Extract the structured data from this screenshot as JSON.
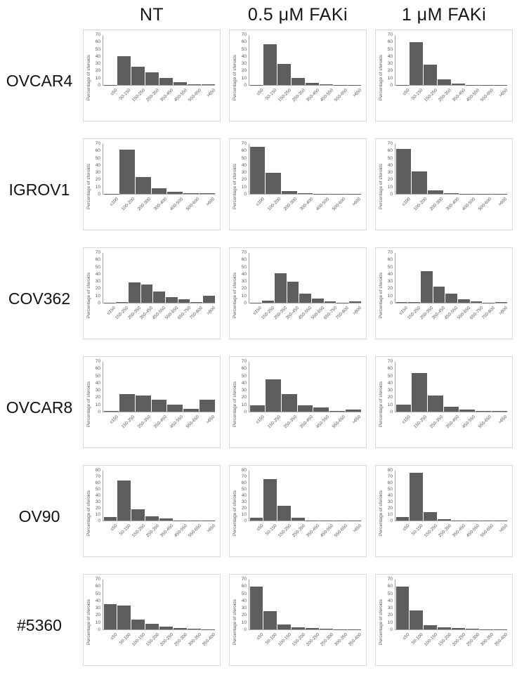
{
  "figure": {
    "background": "#ffffff",
    "bar_color": "#5e5e5e",
    "axis_color": "#a6a6a6",
    "chart_border_color": "#d9d9d9",
    "tick_text_color": "#595959"
  },
  "chart_data": {
    "type": "bar",
    "ylabel": "Percentage of sferoids",
    "columns": [
      "NT",
      "0.5 μM FAKi",
      "1 μM FAKi"
    ],
    "legend": "none",
    "grid": "off",
    "rows": [
      {
        "label": "OVCAR4",
        "ymax": 70,
        "yticks": [
          0,
          10,
          20,
          30,
          40,
          50,
          60,
          70
        ],
        "categories": [
          "≤50",
          "50-150",
          "150-250",
          "250-350",
          "350-450",
          "450-550",
          "550-650",
          ">650"
        ],
        "series": [
          {
            "name": "NT",
            "values": [
              0.5,
              40,
              26,
              18,
              10,
              4,
              1,
              1
            ]
          },
          {
            "name": "0.5 μM FAKi",
            "values": [
              0.5,
              57,
              30,
              10,
              3,
              1,
              0.5,
              0.5
            ]
          },
          {
            "name": "1 μM FAKi",
            "values": [
              0.5,
              60,
              29,
              8,
              2,
              0.5,
              0.5,
              0.5
            ]
          }
        ]
      },
      {
        "label": "IGROV1",
        "ymax": 70,
        "yticks": [
          0,
          10,
          20,
          30,
          40,
          50,
          60,
          70
        ],
        "categories": [
          "≤100",
          "100-200",
          "200-300",
          "300-400",
          "400-500",
          "500-600",
          ">600"
        ],
        "series": [
          {
            "name": "NT",
            "values": [
              0.5,
              62,
              24,
              8,
              3,
              1,
              1
            ]
          },
          {
            "name": "0.5 μM FAKi",
            "values": [
              66,
              30,
              4,
              1,
              0.5,
              0.5,
              0.5
            ]
          },
          {
            "name": "1 μM FAKi",
            "values": [
              63,
              32,
              5,
              1,
              0.5,
              0.5,
              0.5
            ]
          }
        ]
      },
      {
        "label": "COV362",
        "ymax": 70,
        "yticks": [
          0,
          10,
          20,
          30,
          40,
          50,
          60,
          70
        ],
        "categories": [
          "≤150",
          "150-250",
          "250-350",
          "350-450",
          "450-550",
          "550-650",
          "650-750",
          "750-800",
          ">800"
        ],
        "series": [
          {
            "name": "NT",
            "values": [
              0.5,
              1,
              29,
              26,
              16,
              8,
              5,
              1,
              10
            ]
          },
          {
            "name": "0.5 μM FAKi",
            "values": [
              0.5,
              3,
              41,
              30,
              13,
              6,
              2,
              0.5,
              2
            ]
          },
          {
            "name": "1 μM FAKi",
            "values": [
              1,
              1,
              44,
              23,
              13,
              5,
              2,
              0.5,
              1
            ]
          }
        ]
      },
      {
        "label": "OVCAR8",
        "ymax": 70,
        "yticks": [
          0,
          10,
          20,
          30,
          40,
          50,
          60,
          70
        ],
        "categories": [
          "≤150",
          "150-250",
          "250-350",
          "350-450",
          "450-550",
          "550-650",
          ">650"
        ],
        "series": [
          {
            "name": "NT",
            "values": [
              1,
              25,
              23,
              17,
              10,
              4,
              17
            ]
          },
          {
            "name": "0.5 μM FAKi",
            "values": [
              9,
              45,
              25,
              9,
              6,
              1,
              3
            ]
          },
          {
            "name": "1 μM FAKi",
            "values": [
              10,
              54,
              23,
              7,
              3,
              1,
              1
            ]
          }
        ]
      },
      {
        "label": "OV90",
        "ymax": 80,
        "yticks": [
          0,
          10,
          20,
          30,
          40,
          50,
          60,
          70,
          80
        ],
        "categories": [
          "≤50",
          "50-150",
          "150-250",
          "250-350",
          "350-450",
          "450-550",
          "550-650",
          ">650"
        ],
        "series": [
          {
            "name": "NT",
            "values": [
              6,
              64,
              18,
              7,
              3,
              0.5,
              0.5,
              0.5
            ]
          },
          {
            "name": "0.5 μM FAKi",
            "values": [
              5,
              66,
              24,
              5,
              0.5,
              0.5,
              0.5,
              0.5
            ]
          },
          {
            "name": "1 μM FAKi",
            "values": [
              6,
              77,
              13,
              2,
              0.5,
              0.5,
              0.5,
              0.5
            ]
          }
        ]
      },
      {
        "label": "#5360",
        "ymax": 70,
        "yticks": [
          0,
          10,
          20,
          30,
          40,
          50,
          60,
          70
        ],
        "categories": [
          "≤50",
          "50-100",
          "100-150",
          "150-200",
          "200-250",
          "250-300",
          "300-350",
          "350-400"
        ],
        "series": [
          {
            "name": "NT",
            "values": [
              36,
              34,
              14,
              8,
              4,
              2,
              1,
              0.5
            ]
          },
          {
            "name": "0.5 μM FAKi",
            "values": [
              60,
              26,
              7,
              3,
              2,
              1,
              0.5,
              0.5
            ]
          },
          {
            "name": "1 μM FAKi",
            "values": [
              60,
              27,
              6,
              3,
              2,
              1,
              0.5,
              0.5
            ]
          }
        ]
      }
    ]
  }
}
